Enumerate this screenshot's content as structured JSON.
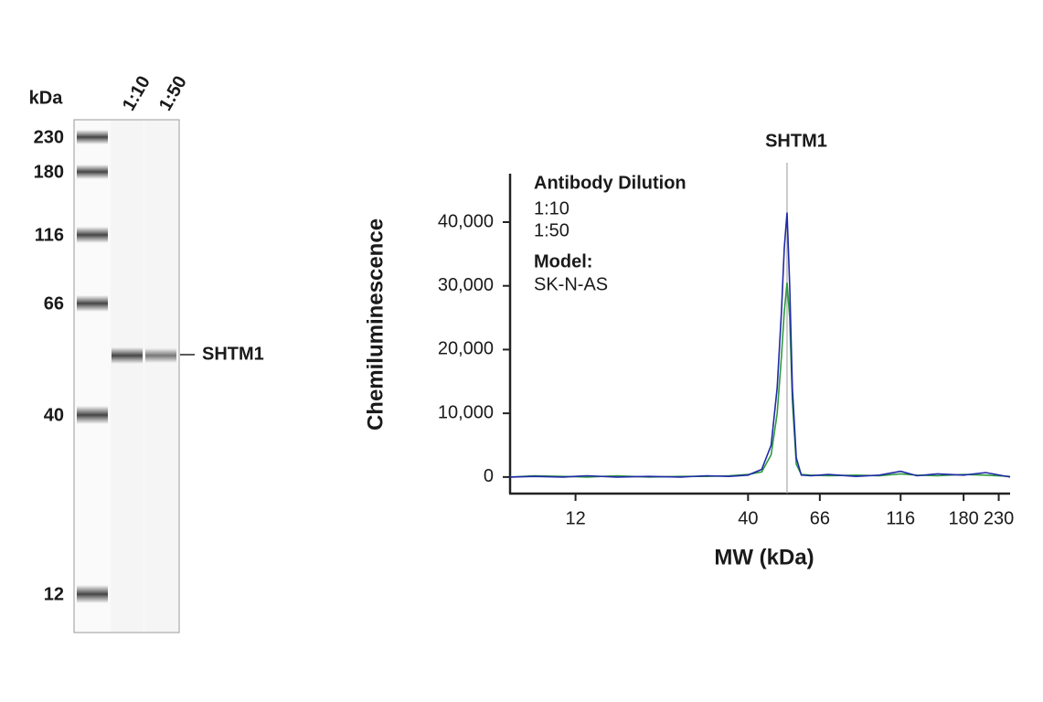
{
  "blot": {
    "unit_label": "kDa",
    "lanes": [
      "1:10",
      "1:50"
    ],
    "markers": [
      "230",
      "180",
      "116",
      "66",
      "40",
      "12"
    ],
    "band_label": "SHTM1"
  },
  "chart_data": {
    "type": "line",
    "title": "SHTM1",
    "x": [
      7.6,
      9,
      11,
      13,
      16,
      20,
      25,
      30,
      35,
      40,
      44,
      47,
      49,
      50.5,
      51.5,
      52.5,
      53.5,
      54.5,
      56,
      58,
      62,
      70,
      85,
      100,
      116,
      130,
      150,
      180,
      210,
      249
    ],
    "series": [
      {
        "name": "1:10",
        "color": "#1f2aa6",
        "values": [
          0,
          100,
          0,
          200,
          0,
          100,
          0,
          200,
          100,
          300,
          1200,
          5000,
          14000,
          26000,
          36000,
          41500,
          30000,
          14000,
          3000,
          300,
          200,
          400,
          100,
          300,
          900,
          200,
          500,
          300,
          700,
          0
        ]
      },
      {
        "name": "1:50",
        "color": "#2e9a3e",
        "values": [
          0,
          200,
          100,
          0,
          200,
          0,
          100,
          100,
          200,
          400,
          800,
          3500,
          10000,
          19000,
          26000,
          30500,
          25000,
          12000,
          2000,
          400,
          300,
          200,
          300,
          200,
          500,
          300,
          200,
          400,
          300,
          100
        ]
      }
    ],
    "xlabel": "MW (kDa)",
    "ylabel": "Chemiluminescence",
    "xscale": "log",
    "xlim": [
      7.6,
      249
    ],
    "xticks": [
      12,
      40,
      66,
      116,
      180,
      230
    ],
    "ylim": [
      -2600,
      47600
    ],
    "yticks": [
      0,
      {
        "value": 10000,
        "label": "10,000"
      },
      {
        "value": 20000,
        "label": "20,000"
      },
      {
        "value": 30000,
        "label": "30,000"
      },
      {
        "value": 40000,
        "label": "40,000"
      }
    ],
    "legend_title": "Antibody Dilution",
    "annotation_title": "Model:",
    "annotation": "SK-N-AS",
    "peak_line": 52.5
  }
}
